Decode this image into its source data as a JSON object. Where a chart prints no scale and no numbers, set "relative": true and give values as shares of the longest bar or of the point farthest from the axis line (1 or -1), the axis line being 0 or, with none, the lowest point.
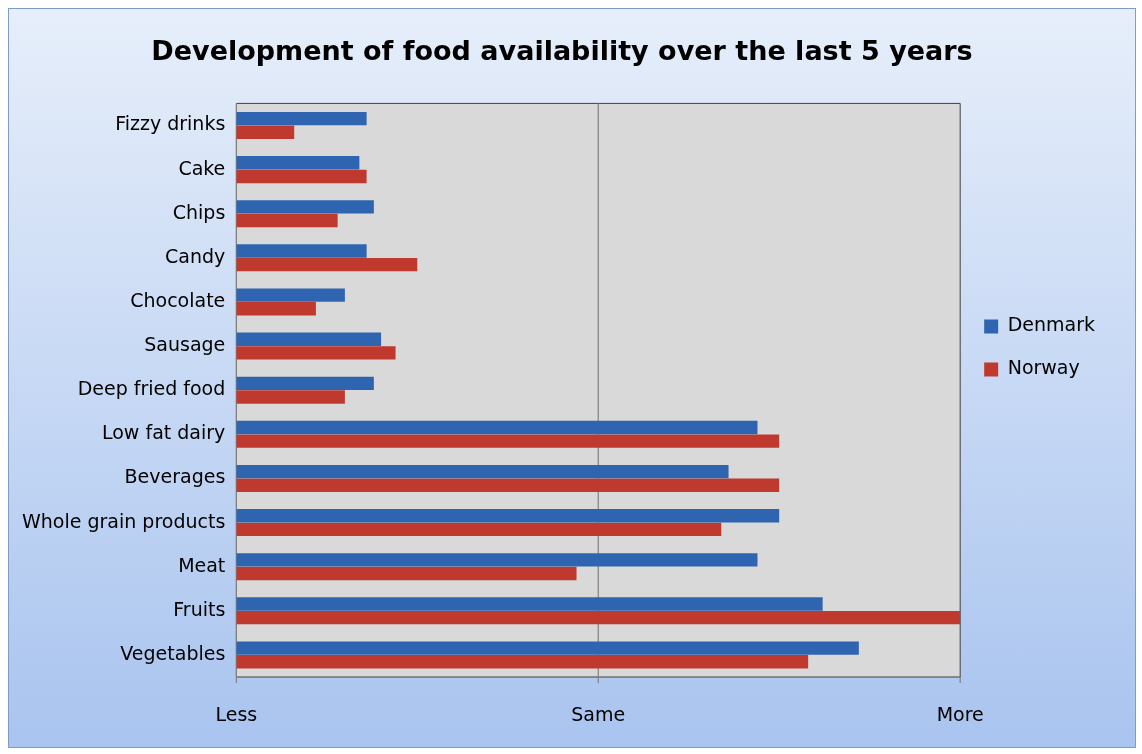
{
  "chart_data": {
    "type": "bar",
    "orientation": "horizontal",
    "relative": true,
    "title": "Development of food availability over the last 5 years",
    "categories": [
      "Fizzy drinks",
      "Cake",
      "Chips",
      "Candy",
      "Chocolate",
      "Sausage",
      "Deep fried food",
      "Low fat dairy",
      "Beverages",
      "Whole grain products",
      "Meat",
      "Fruits",
      "Vegetables"
    ],
    "series": [
      {
        "name": "Denmark",
        "color": "#2e64b0",
        "values": [
          0.18,
          0.17,
          0.19,
          0.18,
          0.15,
          0.2,
          0.19,
          0.72,
          0.68,
          0.75,
          0.72,
          0.81,
          0.86
        ]
      },
      {
        "name": "Norway",
        "color": "#c0392f",
        "values": [
          0.08,
          0.18,
          0.14,
          0.25,
          0.11,
          0.22,
          0.15,
          0.75,
          0.75,
          0.67,
          0.47,
          1,
          0.79
        ]
      }
    ],
    "ref_lines": [
      {
        "axis": "x",
        "value": 0.5,
        "label": "Same",
        "color": "#808080"
      }
    ],
    "annotations": [
      "Less",
      "More"
    ],
    "legend": "right"
  }
}
